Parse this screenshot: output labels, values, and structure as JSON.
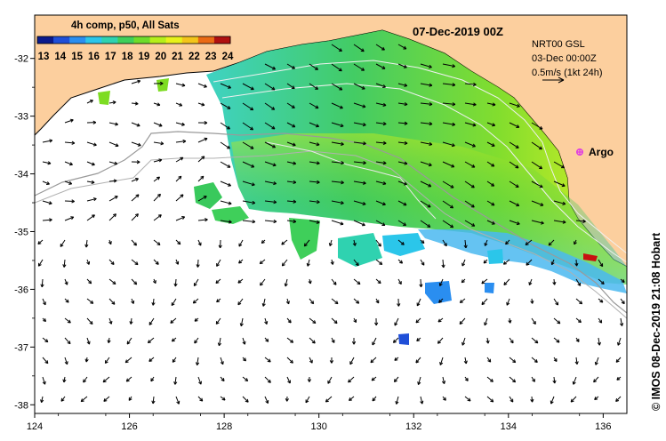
{
  "map": {
    "date_title": "07-Dec-2019 00Z",
    "colorbar_title": "4h comp, p50, All Sats",
    "colorbar_ticks": [
      "13",
      "14",
      "15",
      "16",
      "17",
      "18",
      "19",
      "20",
      "21",
      "22",
      "23",
      "24"
    ],
    "colorbar_colors": [
      "#0a1a8c",
      "#1f4fd8",
      "#2a8ef0",
      "#2bc6ea",
      "#2fd2b0",
      "#3fcf5a",
      "#6fdc2a",
      "#b6ef1a",
      "#e8f21a",
      "#f3c51a",
      "#ea6a14",
      "#b01010"
    ],
    "velocity_scale": {
      "line1": "NRT00 GSL",
      "line2": "03-Dec 00:00Z",
      "line3": "0.5m/s (1kt 24h)"
    },
    "argo_label": "Argo",
    "argo_color": "#e040e0",
    "credit": "© IMOS 08-Dec-2019 21:08 Hobart",
    "land_color": "#fccf9e",
    "lon_ticks": [
      124,
      126,
      128,
      130,
      132,
      134,
      136
    ],
    "lat_ticks": [
      -32,
      -33,
      -34,
      -35,
      -36,
      -37,
      -38
    ],
    "lon_range": [
      124,
      136.5
    ],
    "lat_range": [
      -38.15,
      -31.25
    ]
  }
}
